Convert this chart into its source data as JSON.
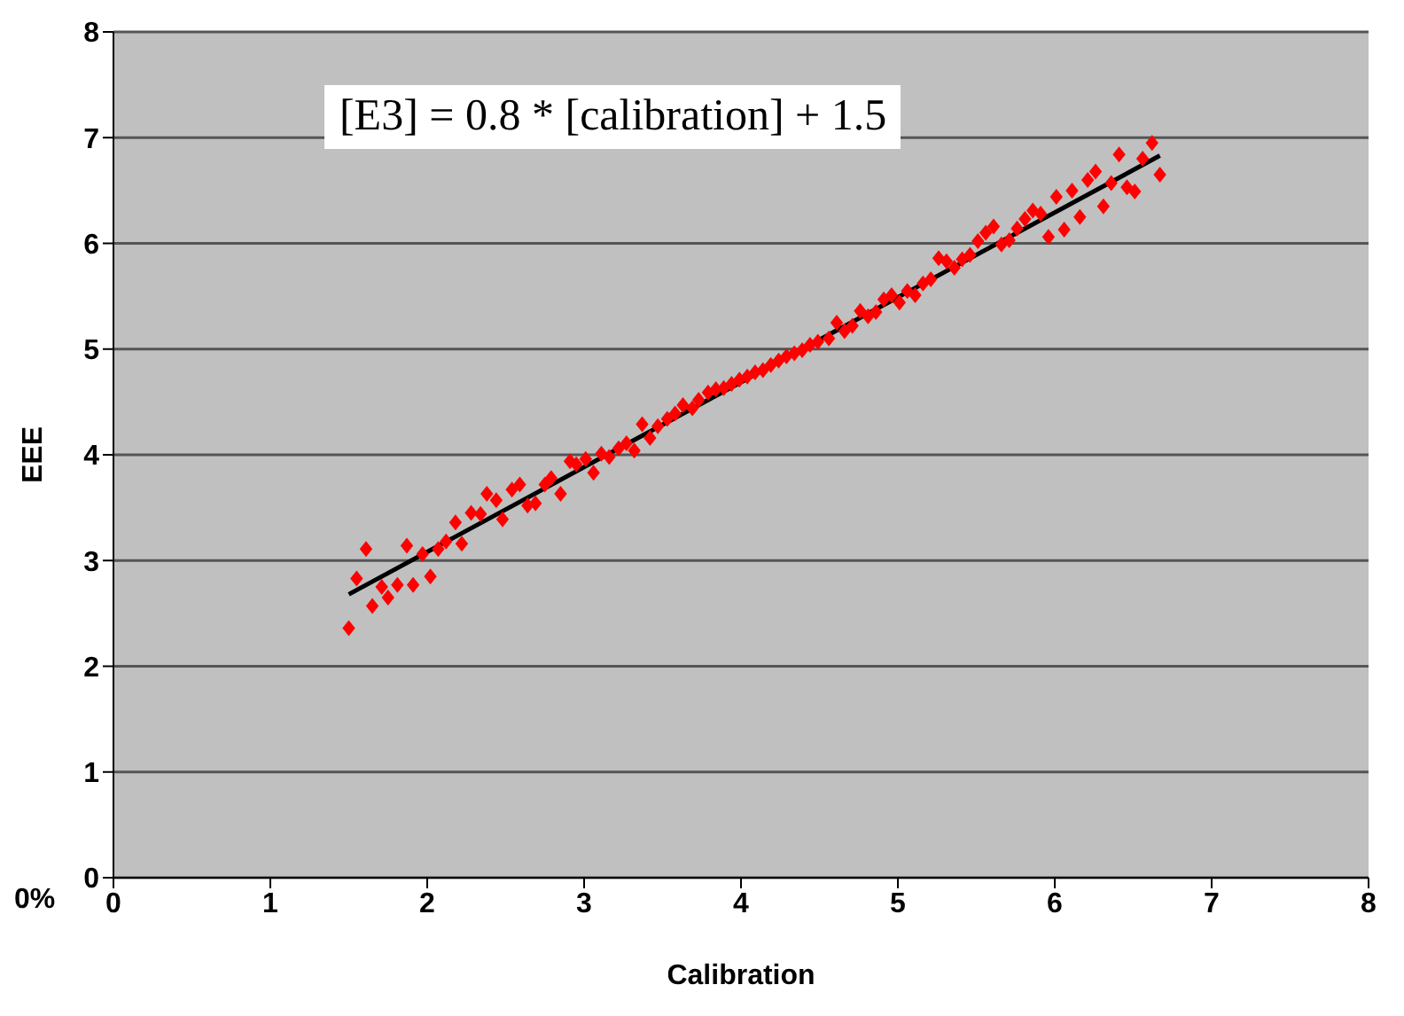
{
  "chart_data": {
    "type": "scatter",
    "xlabel": "Calibration",
    "ylabel": "EEE",
    "xlim": [
      0,
      8
    ],
    "ylim": [
      0,
      8
    ],
    "xticks": [
      0,
      1,
      2,
      3,
      4,
      5,
      6,
      7,
      8
    ],
    "yticks": [
      0,
      1,
      2,
      3,
      4,
      5,
      6,
      7,
      8
    ],
    "grid": "y",
    "legend": false,
    "marker": "diamond",
    "annotations": [
      "[E3] = 0.8 * [calibration] + 1.5",
      "0%"
    ],
    "series": [
      {
        "color": "#ff0000",
        "x": [
          1.5,
          1.55,
          1.61,
          1.65,
          1.71,
          1.75,
          1.81,
          1.87,
          1.91,
          1.97,
          2.02,
          2.07,
          2.12,
          2.18,
          2.22,
          2.28,
          2.34,
          2.38,
          2.44,
          2.48,
          2.54,
          2.59,
          2.64,
          2.69,
          2.75,
          2.79,
          2.85,
          2.91,
          2.95,
          3.01,
          3.06,
          3.11,
          3.16,
          3.22,
          3.27,
          3.32,
          3.37,
          3.42,
          3.47,
          3.53,
          3.58,
          3.63,
          3.69,
          3.73,
          3.79,
          3.84,
          3.89,
          3.94,
          3.99,
          4.04,
          4.09,
          4.14,
          4.19,
          4.24,
          4.29,
          4.34,
          4.39,
          4.44,
          4.49,
          4.56,
          4.61,
          4.66,
          4.71,
          4.76,
          4.81,
          4.86,
          4.91,
          4.96,
          5.01,
          5.06,
          5.11,
          5.16,
          5.21,
          5.26,
          5.31,
          5.36,
          5.41,
          5.46,
          5.51,
          5.56,
          5.61,
          5.66,
          5.71,
          5.76,
          5.81,
          5.86,
          5.91,
          5.96,
          6.01,
          6.06,
          6.11,
          6.16,
          6.21,
          6.26,
          6.31,
          6.36,
          6.41,
          6.46,
          6.51,
          6.56,
          6.62,
          6.67
        ],
        "values": [
          2.36,
          2.83,
          3.11,
          2.57,
          2.75,
          2.65,
          2.77,
          3.14,
          2.77,
          3.06,
          2.85,
          3.11,
          3.18,
          3.36,
          3.16,
          3.45,
          3.44,
          3.63,
          3.57,
          3.39,
          3.67,
          3.72,
          3.52,
          3.54,
          3.72,
          3.78,
          3.63,
          3.94,
          3.91,
          3.96,
          3.83,
          4.01,
          3.98,
          4.06,
          4.11,
          4.04,
          4.29,
          4.16,
          4.27,
          4.34,
          4.39,
          4.47,
          4.44,
          4.52,
          4.59,
          4.62,
          4.63,
          4.67,
          4.71,
          4.74,
          4.78,
          4.8,
          4.85,
          4.89,
          4.93,
          4.96,
          4.99,
          5.04,
          5.07,
          5.1,
          5.25,
          5.17,
          5.22,
          5.36,
          5.31,
          5.35,
          5.47,
          5.51,
          5.44,
          5.55,
          5.51,
          5.62,
          5.66,
          5.86,
          5.83,
          5.77,
          5.85,
          5.89,
          6.02,
          6.1,
          6.16,
          5.99,
          6.03,
          6.14,
          6.23,
          6.31,
          6.28,
          6.06,
          6.44,
          6.13,
          6.5,
          6.25,
          6.6,
          6.68,
          6.35,
          6.57,
          6.84,
          6.53,
          6.49,
          6.8,
          6.95,
          6.65
        ]
      },
      {
        "type": "line",
        "color": "#000000",
        "marker": "none",
        "x": [
          1.5,
          6.67
        ],
        "values": [
          2.68,
          6.83
        ]
      }
    ]
  }
}
